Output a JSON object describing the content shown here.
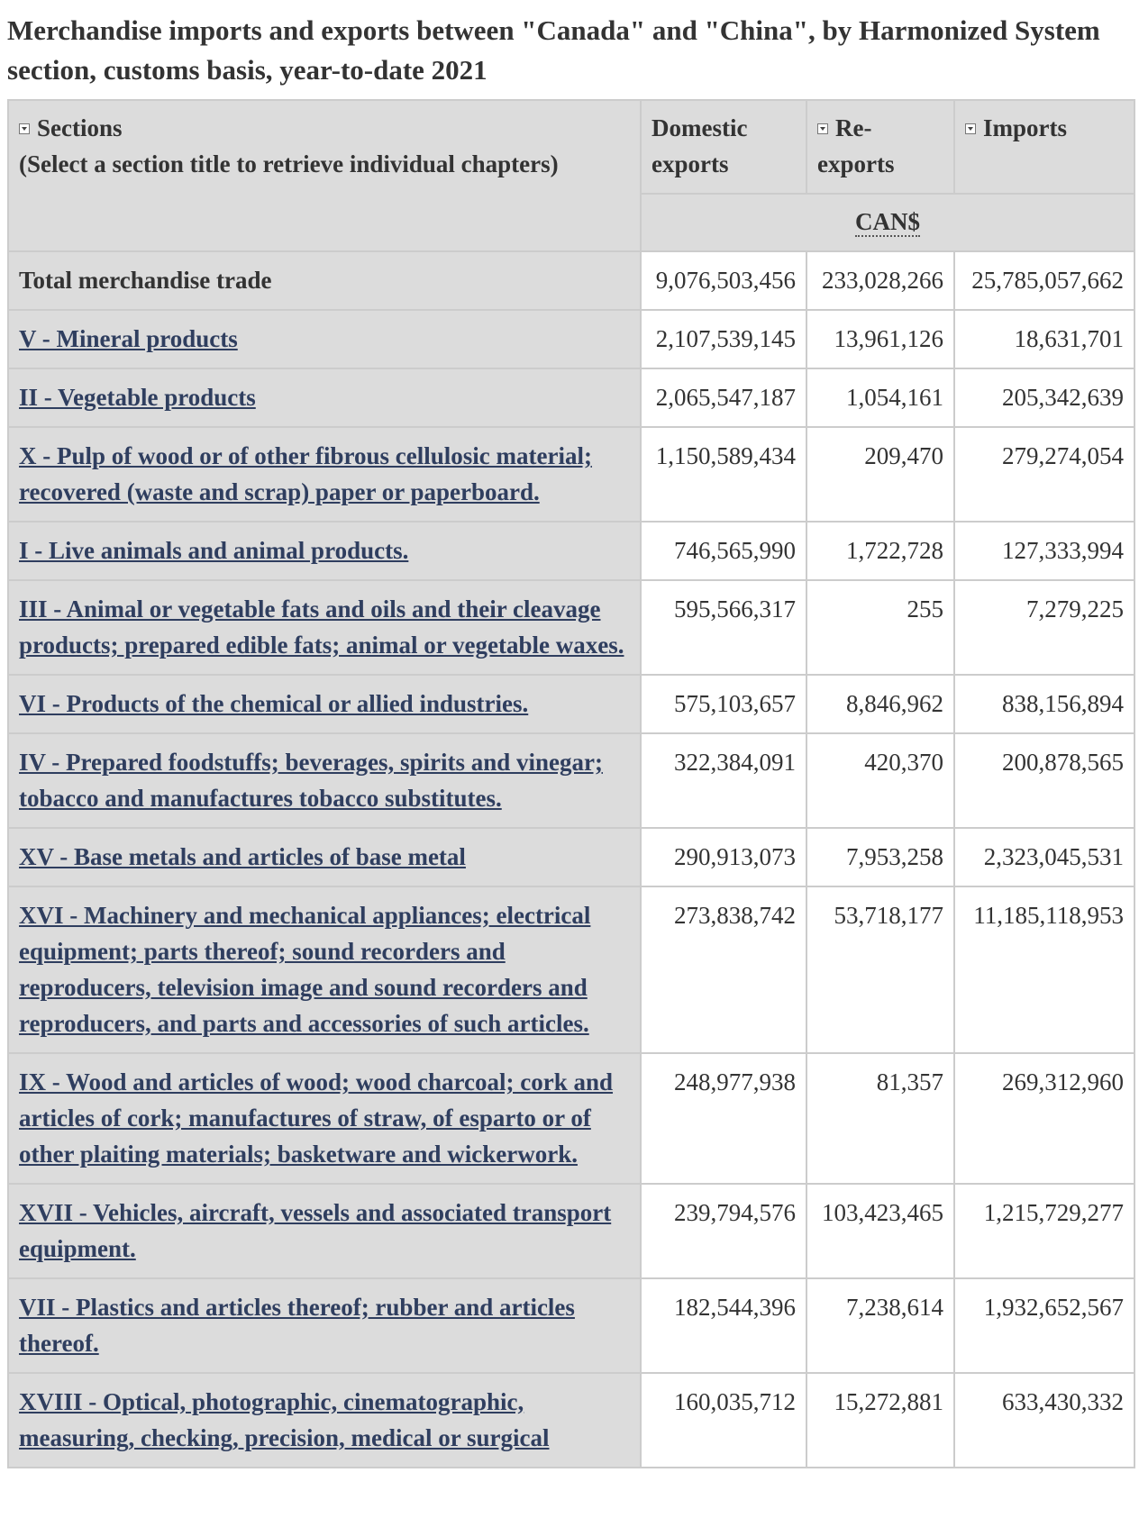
{
  "title": "Merchandise imports and exports between \"Canada\" and \"China\", by Harmonized System section, customs basis, year-to-date 2021",
  "header": {
    "sections_label": "Sections",
    "sections_hint": "(Select a section title to retrieve individual chapters)",
    "domestic_exports_label": "Domestic exports",
    "re_exports_label": "Re-exports",
    "imports_label": "Imports",
    "unit": "CAN$"
  },
  "rows": [
    {
      "section": "Total merchandise trade",
      "domestic_exports": "9,076,503,456",
      "re_exports": "233,028,266",
      "imports": "25,785,057,662"
    },
    {
      "section": "V - Mineral products",
      "domestic_exports": "2,107,539,145",
      "re_exports": "13,961,126",
      "imports": "18,631,701"
    },
    {
      "section": "II - Vegetable products",
      "domestic_exports": "2,065,547,187",
      "re_exports": "1,054,161",
      "imports": "205,342,639"
    },
    {
      "section": "X - Pulp of wood or of other fibrous cellulosic material; recovered (waste and scrap) paper or paperboard.",
      "domestic_exports": "1,150,589,434",
      "re_exports": "209,470",
      "imports": "279,274,054"
    },
    {
      "section": "I - Live animals and animal products.",
      "domestic_exports": "746,565,990",
      "re_exports": "1,722,728",
      "imports": "127,333,994"
    },
    {
      "section": "III - Animal or vegetable fats and oils and their cleavage products; prepared edible fats; animal or vegetable waxes.",
      "domestic_exports": "595,566,317",
      "re_exports": "255",
      "imports": "7,279,225"
    },
    {
      "section": "VI - Products of the chemical or allied industries.",
      "domestic_exports": "575,103,657",
      "re_exports": "8,846,962",
      "imports": "838,156,894"
    },
    {
      "section": "IV - Prepared foodstuffs; beverages, spirits and vinegar; tobacco and manufactures tobacco substitutes.",
      "domestic_exports": "322,384,091",
      "re_exports": "420,370",
      "imports": "200,878,565"
    },
    {
      "section": "XV - Base metals and articles of base metal",
      "domestic_exports": "290,913,073",
      "re_exports": "7,953,258",
      "imports": "2,323,045,531"
    },
    {
      "section": "XVI - Machinery and mechanical appliances; electrical equipment; parts thereof; sound recorders and reproducers, television image and sound recorders and reproducers, and parts and accessories of such articles.",
      "domestic_exports": "273,838,742",
      "re_exports": "53,718,177",
      "imports": "11,185,118,953"
    },
    {
      "section": "IX - Wood and articles of wood; wood charcoal; cork and articles of cork; manufactures of straw, of esparto or of other plaiting materials; basketware and wickerwork.",
      "domestic_exports": "248,977,938",
      "re_exports": "81,357",
      "imports": "269,312,960"
    },
    {
      "section": "XVII - Vehicles, aircraft, vessels and associated transport equipment.",
      "domestic_exports": "239,794,576",
      "re_exports": "103,423,465",
      "imports": "1,215,729,277"
    },
    {
      "section": "VII - Plastics and articles thereof; rubber and articles thereof.",
      "domestic_exports": "182,544,396",
      "re_exports": "7,238,614",
      "imports": "1,932,652,567"
    },
    {
      "section": "XVIII - Optical, photographic, cinematographic, measuring, checking, precision, medical or surgical",
      "domestic_exports": "160,035,712",
      "re_exports": "15,272,881",
      "imports": "633,430,332"
    }
  ]
}
